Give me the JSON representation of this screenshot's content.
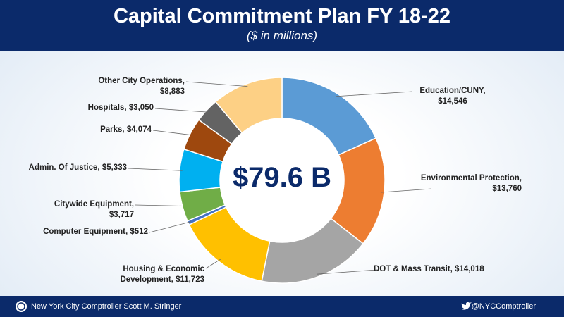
{
  "chart_data": {
    "type": "donut",
    "title": "Capital Commitment Plan FY 18-22",
    "subtitle": "($ in millions)",
    "center_label": "$79.6 B",
    "categories": [
      "Education/CUNY,",
      "Environmental Protection,",
      "DOT & Mass Transit,",
      "Housing & Economic Development,",
      "Computer Equipment,",
      "Citywide Equipment,",
      "Admin. Of Justice,",
      "Parks,",
      "Hospitals,",
      "Other City Operations,"
    ],
    "values": [
      14546,
      13760,
      14018,
      11723,
      512,
      3717,
      5333,
      4074,
      3050,
      8883
    ],
    "value_labels": [
      "$14,546",
      "$13,760",
      "$14,018",
      "$11,723",
      "$512",
      "$3,717",
      "$5,333",
      "$4,074",
      "$3,050",
      "$8,883"
    ],
    "colors": [
      "#5b9bd5",
      "#ed7d31",
      "#a5a5a5",
      "#ffc000",
      "#4472c4",
      "#70ad47",
      "#00b0f0",
      "#9e480e",
      "#636363",
      "#fdd085"
    ]
  },
  "footer": {
    "left": "New York City Comptroller Scott M. Stringer",
    "right": "@NYCComptroller"
  }
}
